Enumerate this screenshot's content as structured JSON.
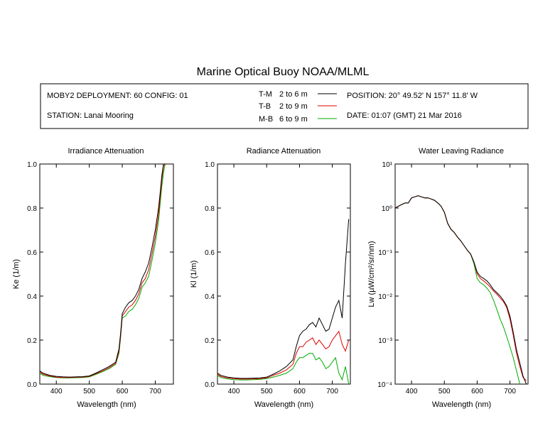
{
  "title": "Marine Optical Buoy NOAA/MLML",
  "info": {
    "deployment": "MOBY2 DEPLOYMENT: 60 CONFIG: 01",
    "station": "STATION: Lanai Mooring",
    "position": "POSITION: 20° 49.52' N   157° 11.8' W",
    "date": "DATE: 01:07 (GMT) 21 Mar 2016",
    "legend": [
      {
        "code": "T-M",
        "range": "2 to 6  m",
        "color": "#000000"
      },
      {
        "code": "T-B",
        "range": "2 to 9  m",
        "color": "#dd0000"
      },
      {
        "code": "M-B",
        "range": "6 to 9  m",
        "color": "#00aa00"
      }
    ]
  },
  "chart_data": [
    {
      "type": "line",
      "title": "Irradiance Attenuation",
      "xlabel": "Wavelength (nm)",
      "ylabel": "Ke  (1/m)",
      "xlim": [
        350,
        755
      ],
      "ylim": [
        0,
        1
      ],
      "xticks": [
        400,
        500,
        600,
        700
      ],
      "yticks": [
        0,
        0.2,
        0.4,
        0.6,
        0.8,
        1.0
      ],
      "ytick_labels": [
        "0.0",
        "0.2",
        "0.4",
        "0.6",
        "0.8",
        "1.0"
      ],
      "series": [
        {
          "name": "T-M",
          "color": "#000000",
          "x": [
            350,
            360,
            380,
            400,
            420,
            440,
            460,
            480,
            500,
            520,
            540,
            560,
            580,
            590,
            595,
            600,
            610,
            620,
            630,
            640,
            650,
            660,
            670,
            680,
            690,
            700,
            710,
            715,
            720,
            725,
            730
          ],
          "y": [
            0.06,
            0.05,
            0.04,
            0.035,
            0.033,
            0.032,
            0.033,
            0.034,
            0.037,
            0.05,
            0.065,
            0.08,
            0.1,
            0.16,
            0.23,
            0.32,
            0.35,
            0.37,
            0.38,
            0.4,
            0.43,
            0.48,
            0.51,
            0.55,
            0.62,
            0.7,
            0.8,
            0.87,
            0.95,
            1.0,
            1.0
          ]
        },
        {
          "name": "T-B",
          "color": "#dd0000",
          "x": [
            350,
            360,
            380,
            400,
            420,
            440,
            460,
            480,
            500,
            520,
            540,
            560,
            580,
            590,
            595,
            600,
            610,
            620,
            630,
            640,
            650,
            660,
            670,
            680,
            690,
            700,
            710,
            715,
            720,
            725,
            730
          ],
          "y": [
            0.055,
            0.045,
            0.037,
            0.032,
            0.03,
            0.03,
            0.031,
            0.032,
            0.035,
            0.047,
            0.06,
            0.075,
            0.095,
            0.15,
            0.22,
            0.31,
            0.33,
            0.35,
            0.36,
            0.38,
            0.41,
            0.46,
            0.48,
            0.52,
            0.59,
            0.67,
            0.77,
            0.85,
            0.93,
            0.99,
            1.0
          ]
        },
        {
          "name": "M-B",
          "color": "#00aa00",
          "x": [
            350,
            360,
            380,
            400,
            420,
            440,
            460,
            480,
            500,
            520,
            540,
            560,
            580,
            590,
            595,
            600,
            610,
            620,
            630,
            640,
            650,
            660,
            670,
            680,
            690,
            700,
            710,
            715,
            720,
            725,
            730
          ],
          "y": [
            0.05,
            0.04,
            0.034,
            0.03,
            0.028,
            0.028,
            0.029,
            0.03,
            0.033,
            0.044,
            0.056,
            0.07,
            0.09,
            0.14,
            0.21,
            0.3,
            0.31,
            0.33,
            0.34,
            0.36,
            0.39,
            0.44,
            0.46,
            0.49,
            0.56,
            0.64,
            0.74,
            0.82,
            0.9,
            0.96,
            1.0
          ]
        }
      ]
    },
    {
      "type": "line",
      "title": "Radiance Attenuation",
      "xlabel": "Wavelength (nm)",
      "ylabel": "Kl  (1/m)",
      "xlim": [
        350,
        755
      ],
      "ylim": [
        0,
        1
      ],
      "xticks": [
        400,
        500,
        600,
        700
      ],
      "yticks": [
        0,
        0.2,
        0.4,
        0.6,
        0.8,
        1.0
      ],
      "ytick_labels": [
        "0.0",
        "0.2",
        "0.4",
        "0.6",
        "0.8",
        "1.0"
      ],
      "series": [
        {
          "name": "T-M",
          "color": "#000000",
          "x": [
            350,
            360,
            380,
            400,
            420,
            440,
            460,
            480,
            500,
            520,
            540,
            560,
            580,
            590,
            600,
            610,
            620,
            630,
            640,
            650,
            660,
            670,
            680,
            690,
            700,
            710,
            720,
            730,
            740,
            750
          ],
          "y": [
            0.05,
            0.04,
            0.032,
            0.028,
            0.026,
            0.026,
            0.027,
            0.028,
            0.032,
            0.045,
            0.06,
            0.08,
            0.11,
            0.17,
            0.22,
            0.24,
            0.25,
            0.27,
            0.28,
            0.26,
            0.3,
            0.27,
            0.24,
            0.25,
            0.3,
            0.35,
            0.38,
            0.3,
            0.55,
            0.75
          ]
        },
        {
          "name": "T-B",
          "color": "#dd0000",
          "x": [
            350,
            360,
            380,
            400,
            420,
            440,
            460,
            480,
            500,
            520,
            540,
            560,
            580,
            590,
            600,
            610,
            620,
            630,
            640,
            650,
            660,
            670,
            680,
            690,
            700,
            710,
            720,
            730,
            740,
            750
          ],
          "y": [
            0.045,
            0.035,
            0.028,
            0.025,
            0.023,
            0.023,
            0.024,
            0.025,
            0.028,
            0.04,
            0.05,
            0.065,
            0.09,
            0.14,
            0.17,
            0.17,
            0.19,
            0.2,
            0.21,
            0.18,
            0.2,
            0.18,
            0.16,
            0.17,
            0.2,
            0.22,
            0.24,
            0.18,
            0.15,
            0.2
          ]
        },
        {
          "name": "M-B",
          "color": "#00aa00",
          "x": [
            350,
            360,
            380,
            400,
            420,
            440,
            460,
            480,
            500,
            520,
            540,
            560,
            580,
            590,
            600,
            610,
            620,
            630,
            640,
            650,
            660,
            670,
            680,
            690,
            700,
            710,
            720,
            730,
            740,
            750
          ],
          "y": [
            0.04,
            0.03,
            0.024,
            0.02,
            0.019,
            0.019,
            0.02,
            0.022,
            0.025,
            0.032,
            0.04,
            0.05,
            0.07,
            0.1,
            0.12,
            0.12,
            0.13,
            0.14,
            0.14,
            0.11,
            0.12,
            0.1,
            0.07,
            0.08,
            0.1,
            0.12,
            0.05,
            0.02,
            0.08,
            0.0
          ]
        }
      ]
    },
    {
      "type": "line",
      "title": "Water Leaving Radiance",
      "xlabel": "Wavelength (nm)",
      "ylabel": "Lw  (µW/cm²/sr/nm)",
      "xlim": [
        350,
        755
      ],
      "ylim_log10": [
        -4,
        1
      ],
      "xticks": [
        400,
        500,
        600,
        700
      ],
      "yticks_log10": [
        -4,
        -3,
        -2,
        -1,
        0,
        1
      ],
      "ytick_labels": [
        "10⁻⁴",
        "10⁻³",
        "10⁻²",
        "10⁻¹",
        "10⁰",
        "10¹"
      ],
      "series": [
        {
          "name": "T-M",
          "color": "#000000",
          "x": [
            350,
            360,
            370,
            380,
            390,
            400,
            410,
            420,
            430,
            440,
            450,
            460,
            470,
            480,
            490,
            500,
            510,
            520,
            530,
            540,
            550,
            560,
            570,
            580,
            590,
            600,
            610,
            620,
            630,
            640,
            650,
            660,
            670,
            680,
            690,
            700,
            710,
            720,
            730,
            740,
            750
          ],
          "y": [
            1.0,
            1.1,
            1.2,
            1.3,
            1.3,
            1.7,
            1.8,
            1.9,
            1.8,
            1.7,
            1.7,
            1.6,
            1.5,
            1.3,
            1.1,
            0.8,
            0.45,
            0.33,
            0.28,
            0.22,
            0.18,
            0.14,
            0.11,
            0.09,
            0.06,
            0.035,
            0.028,
            0.025,
            0.022,
            0.018,
            0.014,
            0.012,
            0.01,
            0.008,
            0.006,
            0.0035,
            0.0015,
            0.0006,
            0.0003,
            0.00015,
            0.0001
          ]
        },
        {
          "name": "T-B",
          "color": "#dd0000",
          "x": [
            350,
            360,
            370,
            380,
            390,
            400,
            410,
            420,
            430,
            440,
            450,
            460,
            470,
            480,
            490,
            500,
            510,
            520,
            530,
            540,
            550,
            560,
            570,
            580,
            590,
            600,
            610,
            620,
            630,
            640,
            650,
            660,
            670,
            680,
            690,
            700,
            710,
            720,
            730,
            740,
            750
          ],
          "y": [
            1.0,
            1.1,
            1.2,
            1.3,
            1.3,
            1.7,
            1.8,
            1.9,
            1.8,
            1.7,
            1.7,
            1.6,
            1.5,
            1.3,
            1.1,
            0.8,
            0.45,
            0.33,
            0.28,
            0.22,
            0.18,
            0.14,
            0.11,
            0.09,
            0.06,
            0.032,
            0.025,
            0.022,
            0.019,
            0.016,
            0.013,
            0.011,
            0.009,
            0.0075,
            0.0055,
            0.003,
            0.0013,
            0.0005,
            0.00025,
            0.00014,
            0.00012
          ]
        },
        {
          "name": "M-B",
          "color": "#00aa00",
          "x": [
            350,
            360,
            370,
            380,
            390,
            400,
            410,
            420,
            430,
            440,
            450,
            460,
            470,
            480,
            490,
            500,
            510,
            520,
            530,
            540,
            550,
            560,
            570,
            580,
            590,
            600,
            610,
            620,
            630,
            640,
            650,
            660,
            670,
            680,
            690,
            700,
            710,
            720,
            730
          ],
          "y": [
            1.0,
            1.1,
            1.2,
            1.3,
            1.3,
            1.7,
            1.8,
            1.9,
            1.8,
            1.7,
            1.7,
            1.6,
            1.5,
            1.3,
            1.1,
            0.8,
            0.45,
            0.33,
            0.28,
            0.22,
            0.18,
            0.14,
            0.11,
            0.09,
            0.055,
            0.025,
            0.02,
            0.018,
            0.015,
            0.012,
            0.008,
            0.005,
            0.003,
            0.002,
            0.0012,
            0.0007,
            0.0004,
            0.0002,
            0.0001
          ]
        }
      ]
    }
  ]
}
